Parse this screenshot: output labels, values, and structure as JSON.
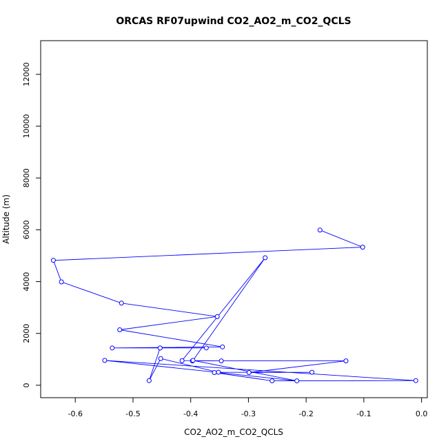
{
  "chart_data": {
    "type": "line",
    "title": "ORCAS RF07upwind CO2_AO2_m_CO2_QCLS",
    "xlabel": "CO2_AO2_m_CO2_QCLS",
    "ylabel": "Altitude (m)",
    "xlim": [
      -0.66,
      0.01
    ],
    "ylim": [
      -480,
      13300
    ],
    "x_ticks": [
      -0.6,
      -0.5,
      -0.4,
      -0.3,
      -0.2,
      -0.1,
      0.0
    ],
    "x_tick_labels": [
      "-0.6",
      "-0.5",
      "-0.4",
      "-0.3",
      "-0.2",
      "-0.1",
      "0.0"
    ],
    "y_ticks": [
      0,
      2000,
      4000,
      6000,
      8000,
      10000,
      12000
    ],
    "y_tick_labels": [
      "0",
      "2000",
      "4000",
      "6000",
      "8000",
      "10000",
      "12000"
    ],
    "grid": false,
    "line_color": "#0000ff",
    "marker": "open-circle",
    "series": [
      {
        "x": [
          -0.176,
          -0.102,
          -0.638,
          -0.624,
          -0.52,
          -0.354,
          -0.523,
          -0.345,
          -0.536,
          -0.373,
          -0.453,
          -0.453,
          -0.472,
          -0.452,
          -0.352,
          -0.19,
          -0.299,
          -0.131,
          -0.397,
          -0.347,
          -0.415,
          -0.271,
          -0.396,
          -0.216,
          -0.549,
          -0.01,
          -0.259,
          -0.359
        ],
        "y": [
          5990,
          5330,
          4820,
          3990,
          3170,
          2650,
          2140,
          1480,
          1440,
          1440,
          1440,
          1440,
          180,
          1030,
          500,
          500,
          490,
          940,
          940,
          940,
          950,
          4920,
          960,
          170,
          960,
          180,
          170,
          490
        ]
      }
    ]
  }
}
